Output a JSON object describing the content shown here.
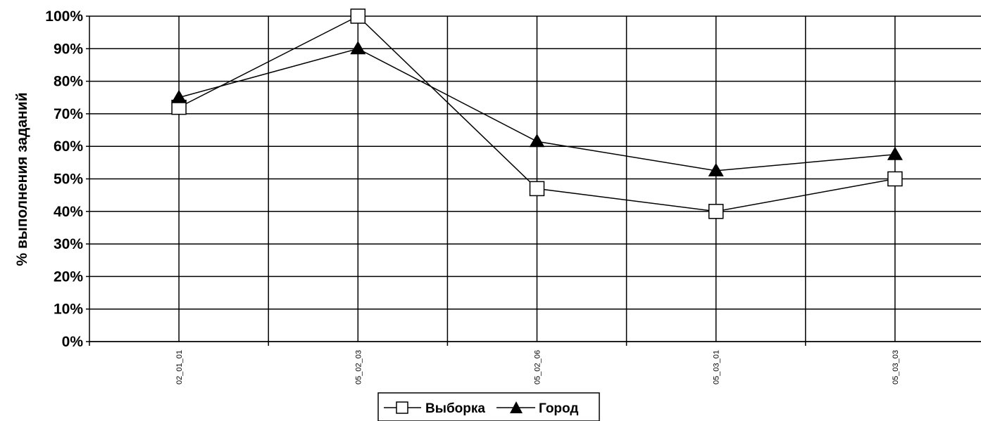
{
  "chart_data": {
    "type": "line",
    "title": "",
    "ylabel": "% выполнения заданий",
    "xlabel": "",
    "categories": [
      "02_01_01",
      "05_02_03",
      "05_02_06",
      "05_03_01",
      "05_03_03"
    ],
    "y_ticks": [
      "0%",
      "10%",
      "20%",
      "30%",
      "40%",
      "50%",
      "60%",
      "70%",
      "80%",
      "90%",
      "100%"
    ],
    "ylim": [
      0,
      100
    ],
    "grid": true,
    "legend_position": "bottom",
    "series": [
      {
        "name": "Выборка",
        "marker": "square-open",
        "values": [
          72,
          100,
          47,
          40,
          50
        ]
      },
      {
        "name": "Город",
        "marker": "triangle-filled",
        "values": [
          75,
          90,
          61.5,
          52.5,
          57.5
        ]
      }
    ],
    "colors": {
      "line": "#000000",
      "background": "#ffffff",
      "marker_fill_open": "#ffffff",
      "marker_fill_solid": "#000000"
    }
  }
}
